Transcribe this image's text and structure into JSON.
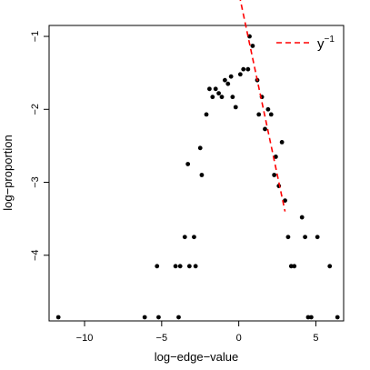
{
  "chart_data": {
    "type": "scatter",
    "xlabel": "log−edge−value",
    "ylabel": "log−proportion",
    "xlim": [
      -12.3,
      6.8
    ],
    "ylim": [
      -4.9,
      -0.85
    ],
    "x_ticks": [
      -10,
      -5,
      0,
      5
    ],
    "y_ticks": [
      -1,
      -2,
      -3,
      -4
    ],
    "x_tick_labels": [
      "−10",
      "−5",
      "0",
      "5"
    ],
    "y_tick_labels": [
      "−1",
      "−2",
      "−3",
      "−4"
    ],
    "grid": false,
    "legend": {
      "position": "top-right",
      "entry_base": "y",
      "entry_exponent": "−1",
      "line_color": "#ff0000",
      "line_style": "dashed"
    },
    "colors": {
      "points": "#000000",
      "reference_line": "#ff0000"
    },
    "reference_line": {
      "name": "y^-1",
      "slope": -1,
      "intercept": -0.4,
      "x_range": [
        -1.3,
        3.0
      ]
    },
    "points": [
      [
        -11.7,
        -4.85
      ],
      [
        -6.1,
        -4.85
      ],
      [
        -5.2,
        -4.85
      ],
      [
        -3.9,
        -4.85
      ],
      [
        -5.3,
        -4.15
      ],
      [
        -4.1,
        -4.15
      ],
      [
        -3.8,
        -4.15
      ],
      [
        -3.2,
        -4.15
      ],
      [
        -2.8,
        -4.15
      ],
      [
        -3.5,
        -3.75
      ],
      [
        -2.9,
        -3.75
      ],
      [
        -3.3,
        -2.75
      ],
      [
        -2.4,
        -2.9
      ],
      [
        -2.5,
        -2.53
      ],
      [
        -2.1,
        -2.07
      ],
      [
        -1.9,
        -1.72
      ],
      [
        -1.7,
        -1.83
      ],
      [
        -1.5,
        -1.72
      ],
      [
        -1.3,
        -1.78
      ],
      [
        -1.1,
        -1.83
      ],
      [
        -0.9,
        -1.6
      ],
      [
        -0.7,
        -1.65
      ],
      [
        -0.5,
        -1.55
      ],
      [
        -0.4,
        -1.83
      ],
      [
        -0.2,
        -1.97
      ],
      [
        0.1,
        -1.52
      ],
      [
        0.3,
        -1.45
      ],
      [
        0.6,
        -1.45
      ],
      [
        0.7,
        -1.0
      ],
      [
        0.9,
        -1.13
      ],
      [
        1.2,
        -1.6
      ],
      [
        1.3,
        -2.07
      ],
      [
        1.5,
        -1.83
      ],
      [
        1.7,
        -2.27
      ],
      [
        1.9,
        -2.0
      ],
      [
        2.1,
        -2.07
      ],
      [
        2.3,
        -2.9
      ],
      [
        2.4,
        -2.65
      ],
      [
        2.6,
        -3.05
      ],
      [
        2.8,
        -2.45
      ],
      [
        3.0,
        -3.25
      ],
      [
        3.2,
        -3.75
      ],
      [
        3.4,
        -4.15
      ],
      [
        3.6,
        -4.15
      ],
      [
        4.1,
        -3.48
      ],
      [
        4.3,
        -3.75
      ],
      [
        4.5,
        -4.85
      ],
      [
        4.7,
        -4.85
      ],
      [
        5.1,
        -3.75
      ],
      [
        5.9,
        -4.15
      ],
      [
        6.4,
        -4.85
      ]
    ]
  }
}
